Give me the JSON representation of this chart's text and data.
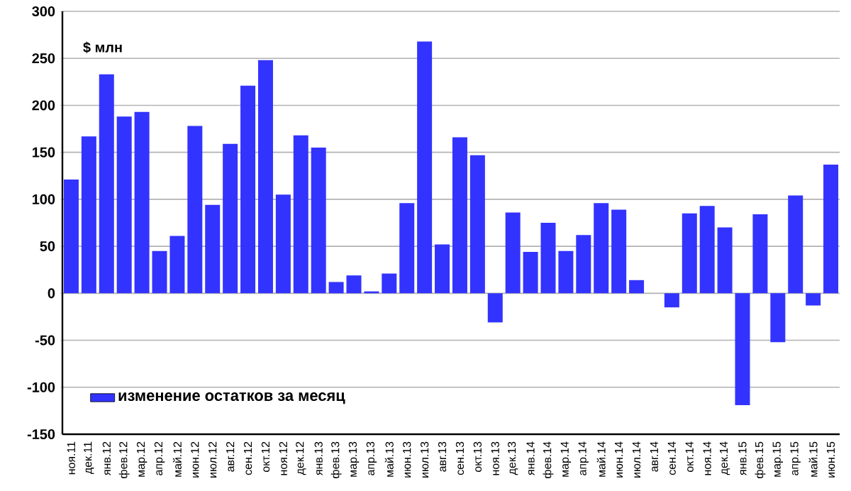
{
  "chart_data": {
    "type": "bar",
    "ylabel": "$ млн",
    "categories": [
      "ноя.11",
      "дек.11",
      "янв.12",
      "фев.12",
      "мар.12",
      "апр.12",
      "май.12",
      "июн.12",
      "июл.12",
      "авг.12",
      "сен.12",
      "окт.12",
      "ноя.12",
      "дек.12",
      "янв.13",
      "фев.13",
      "мар.13",
      "апр.13",
      "май.13",
      "июн.13",
      "июл.13",
      "авг.13",
      "сен.13",
      "окт.13",
      "ноя.13",
      "дек.13",
      "янв.14",
      "фев.14",
      "мар.14",
      "апр.14",
      "май.14",
      "июн.14",
      "июл.14",
      "авг.14",
      "сен.14",
      "окт.14",
      "ноя.14",
      "дек.14",
      "янв.15",
      "фев.15",
      "мар.15",
      "апр.15",
      "май.15",
      "июн.15"
    ],
    "series": [
      {
        "name": "изменение остатков за месяц",
        "color": "#3333ff",
        "values": [
          121,
          167,
          233,
          188,
          193,
          45,
          61,
          178,
          94,
          159,
          221,
          248,
          105,
          168,
          155,
          12,
          19,
          2,
          21,
          96,
          268,
          52,
          166,
          147,
          -31,
          86,
          44,
          75,
          45,
          62,
          96,
          89,
          14,
          0,
          -15,
          85,
          93,
          70,
          -119,
          84,
          -52,
          104,
          -13,
          137
        ]
      }
    ],
    "ylim": [
      -150,
      300
    ],
    "yticks": [
      -150,
      -100,
      -50,
      0,
      50,
      100,
      150,
      200,
      250,
      300
    ],
    "grid": "y",
    "legend": "bottom left"
  }
}
